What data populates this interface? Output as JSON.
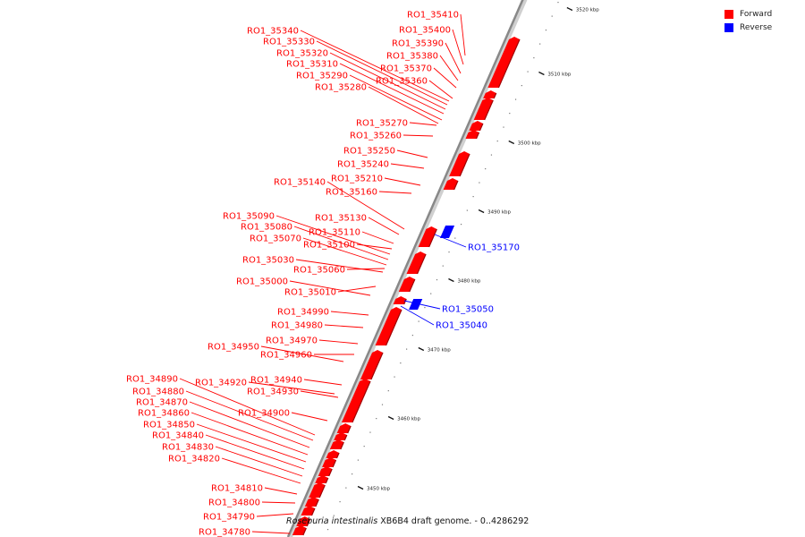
{
  "colors": {
    "forward": "#ff0000",
    "reverse": "#0000ff",
    "backbone": "#888888",
    "tick": "#111111"
  },
  "legend": [
    {
      "label": "Forward",
      "color": "#ff0000"
    },
    {
      "label": "Reverse",
      "color": "#0000ff"
    }
  ],
  "caption": {
    "species": "Roseburia intestinalis",
    "rest": " XB6B4 draft genome. - 0..4286292"
  },
  "ticks": [
    "3450 kbp",
    "3460 kbp",
    "3470 kbp",
    "3480 kbp",
    "3490 kbp",
    "3500 kbp",
    "3510 kbp",
    "3520 kbp"
  ],
  "genes": [
    {
      "name": "RO1_35410",
      "strand": "forward"
    },
    {
      "name": "RO1_35400",
      "strand": "forward"
    },
    {
      "name": "RO1_35390",
      "strand": "forward"
    },
    {
      "name": "RO1_35380",
      "strand": "forward"
    },
    {
      "name": "RO1_35370",
      "strand": "forward"
    },
    {
      "name": "RO1_35360",
      "strand": "forward"
    },
    {
      "name": "RO1_35340",
      "strand": "forward"
    },
    {
      "name": "RO1_35330",
      "strand": "forward"
    },
    {
      "name": "RO1_35320",
      "strand": "forward"
    },
    {
      "name": "RO1_35310",
      "strand": "forward"
    },
    {
      "name": "RO1_35290",
      "strand": "forward"
    },
    {
      "name": "RO1_35280",
      "strand": "forward"
    },
    {
      "name": "RO1_35270",
      "strand": "forward"
    },
    {
      "name": "RO1_35260",
      "strand": "forward"
    },
    {
      "name": "RO1_35250",
      "strand": "forward"
    },
    {
      "name": "RO1_35240",
      "strand": "forward"
    },
    {
      "name": "RO1_35210",
      "strand": "forward"
    },
    {
      "name": "RO1_35140",
      "strand": "forward"
    },
    {
      "name": "RO1_35160",
      "strand": "forward"
    },
    {
      "name": "RO1_35130",
      "strand": "forward"
    },
    {
      "name": "RO1_35090",
      "strand": "forward"
    },
    {
      "name": "RO1_35080",
      "strand": "forward"
    },
    {
      "name": "RO1_35110",
      "strand": "forward"
    },
    {
      "name": "RO1_35070",
      "strand": "forward"
    },
    {
      "name": "RO1_35100",
      "strand": "forward"
    },
    {
      "name": "RO1_35030",
      "strand": "forward"
    },
    {
      "name": "RO1_35060",
      "strand": "forward"
    },
    {
      "name": "RO1_35000",
      "strand": "forward"
    },
    {
      "name": "RO1_35010",
      "strand": "forward"
    },
    {
      "name": "RO1_34990",
      "strand": "forward"
    },
    {
      "name": "RO1_34980",
      "strand": "forward"
    },
    {
      "name": "RO1_34970",
      "strand": "forward"
    },
    {
      "name": "RO1_34950",
      "strand": "forward"
    },
    {
      "name": "RO1_34960",
      "strand": "forward"
    },
    {
      "name": "RO1_34940",
      "strand": "forward"
    },
    {
      "name": "RO1_34890",
      "strand": "forward"
    },
    {
      "name": "RO1_34920",
      "strand": "forward"
    },
    {
      "name": "RO1_34930",
      "strand": "forward"
    },
    {
      "name": "RO1_34880",
      "strand": "forward"
    },
    {
      "name": "RO1_34870",
      "strand": "forward"
    },
    {
      "name": "RO1_34900",
      "strand": "forward"
    },
    {
      "name": "RO1_34860",
      "strand": "forward"
    },
    {
      "name": "RO1_34850",
      "strand": "forward"
    },
    {
      "name": "RO1_34840",
      "strand": "forward"
    },
    {
      "name": "RO1_34830",
      "strand": "forward"
    },
    {
      "name": "RO1_34820",
      "strand": "forward"
    },
    {
      "name": "RO1_34810",
      "strand": "forward"
    },
    {
      "name": "RO1_34800",
      "strand": "forward"
    },
    {
      "name": "RO1_34790",
      "strand": "forward"
    },
    {
      "name": "RO1_34780",
      "strand": "forward"
    },
    {
      "name": "RO1_35170",
      "strand": "reverse"
    },
    {
      "name": "RO1_35050",
      "strand": "reverse"
    },
    {
      "name": "RO1_35040",
      "strand": "reverse"
    }
  ]
}
